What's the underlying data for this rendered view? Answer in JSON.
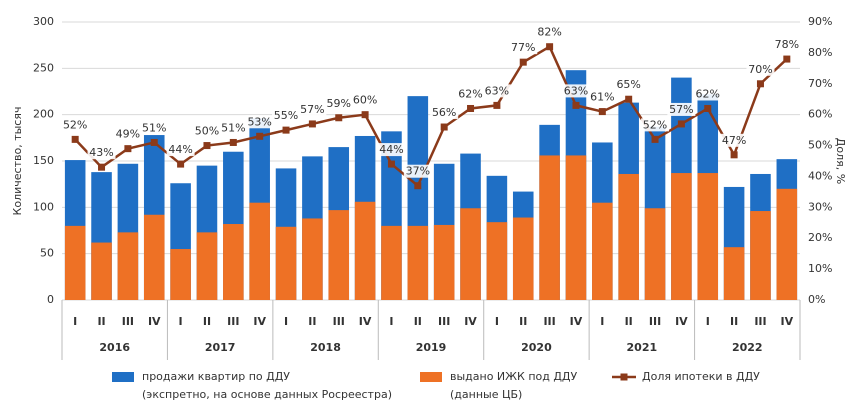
{
  "chart_data": {
    "type": "bar",
    "categories": [
      "I",
      "II",
      "III",
      "IV",
      "I",
      "II",
      "III",
      "IV",
      "I",
      "II",
      "III",
      "IV",
      "I",
      "II",
      "III",
      "IV",
      "I",
      "II",
      "III",
      "IV",
      "I",
      "II",
      "III",
      "IV",
      "I",
      "II",
      "III",
      "IV"
    ],
    "years": [
      "2016",
      "2017",
      "2018",
      "2019",
      "2020",
      "2021",
      "2022"
    ],
    "ylabel": "Количество, тысяч",
    "y2label": "Доля, %",
    "ylim": [
      0,
      300
    ],
    "yticks": [
      0,
      50,
      100,
      150,
      200,
      250,
      300
    ],
    "y2lim": [
      0,
      90
    ],
    "y2ticks": [
      {
        "value": 0,
        "label": "0%"
      },
      {
        "value": 10,
        "label": "10%"
      },
      {
        "value": 20,
        "label": "20%"
      },
      {
        "value": 30,
        "label": "30%"
      },
      {
        "value": 40,
        "label": "40%"
      },
      {
        "value": 50,
        "label": "50%"
      },
      {
        "value": 60,
        "label": "60%"
      },
      {
        "value": 70,
        "label": "70%"
      },
      {
        "value": 80,
        "label": "80%"
      },
      {
        "value": 90,
        "label": "90%"
      }
    ],
    "grid": true,
    "series": [
      {
        "name": "продажи квартир по ДДУ",
        "note": "(экспретно, на основе данных Росреестра)",
        "color": "#1f6fc5",
        "values": [
          151,
          138,
          147,
          178,
          126,
          145,
          160,
          196,
          142,
          155,
          165,
          177,
          182,
          220,
          147,
          158,
          134,
          117,
          189,
          248,
          170,
          213,
          187,
          240,
          222,
          122,
          136,
          152
        ]
      },
      {
        "name": "выдано ИЖК под ДДУ",
        "note": "(данные ЦБ)",
        "color": "#ee7125",
        "values": [
          80,
          62,
          73,
          92,
          55,
          73,
          82,
          105,
          79,
          88,
          97,
          106,
          80,
          80,
          81,
          99,
          84,
          89,
          156,
          156,
          105,
          136,
          99,
          137,
          137,
          57,
          96,
          120
        ]
      },
      {
        "name": "Доля ипотеки в ДДУ",
        "color": "#8b3a1a",
        "axis": "y2",
        "values": [
          52,
          43,
          49,
          51,
          44,
          50,
          51,
          53,
          55,
          57,
          59,
          60,
          44,
          37,
          56,
          62,
          63,
          77,
          82,
          63,
          61,
          65,
          52,
          57,
          62,
          47,
          70,
          78
        ],
        "value_labels": [
          "52%",
          "43%",
          "49%",
          "51%",
          "44%",
          "50%",
          "51%",
          "53%",
          "55%",
          "57%",
          "59%",
          "60%",
          "44%",
          "37%",
          "56%",
          "62%",
          "63%",
          "77%",
          "82%",
          "63%",
          "61%",
          "65%",
          "52%",
          "57%",
          "62%",
          "47%",
          "70%",
          "78%"
        ]
      }
    ]
  }
}
